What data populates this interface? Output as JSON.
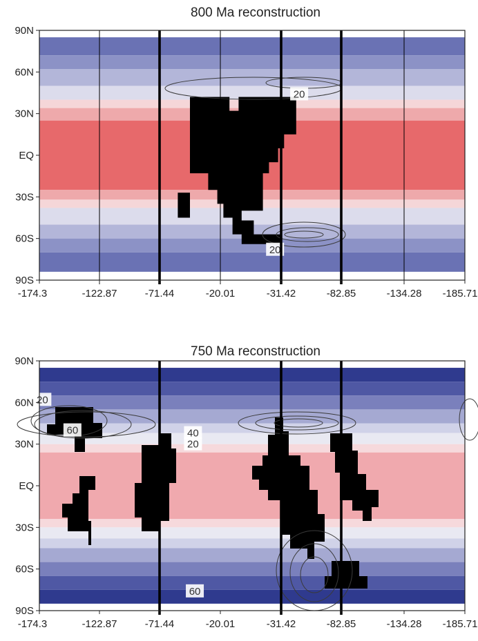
{
  "chart_data": [
    {
      "type": "heatmap",
      "title": "800 Ma reconstruction",
      "y_ticks": [
        "90N",
        "60N",
        "30N",
        "EQ",
        "30S",
        "60S",
        "90S"
      ],
      "x_ticks": [
        "-174.3",
        "-122.87",
        "-71.44",
        "-20.01",
        "-31.42",
        "-82.85",
        "-134.28",
        "-185.71"
      ],
      "ylim": [
        -90,
        90
      ],
      "x_tick_style": [
        "thin",
        "thin",
        "thick",
        "thin",
        "thick",
        "thick",
        "thin",
        "thin"
      ],
      "bands": [
        {
          "from": 90,
          "to": 85,
          "color": "#ffffff"
        },
        {
          "from": 85,
          "to": 72,
          "color": "#6a72b4"
        },
        {
          "from": 72,
          "to": 62,
          "color": "#8c92c6"
        },
        {
          "from": 62,
          "to": 50,
          "color": "#b3b6d9"
        },
        {
          "from": 50,
          "to": 40,
          "color": "#dcdcec"
        },
        {
          "from": 40,
          "to": 34,
          "color": "#f5d6d8"
        },
        {
          "from": 34,
          "to": 25,
          "color": "#eea9ab"
        },
        {
          "from": 25,
          "to": -25,
          "color": "#e7696b"
        },
        {
          "from": -25,
          "to": -32,
          "color": "#eea9ab"
        },
        {
          "from": -32,
          "to": -38,
          "color": "#f5d6d8"
        },
        {
          "from": -38,
          "to": -50,
          "color": "#dcdcec"
        },
        {
          "from": -50,
          "to": -60,
          "color": "#b3b6d9"
        },
        {
          "from": -60,
          "to": -70,
          "color": "#8c92c6"
        },
        {
          "from": -70,
          "to": -84,
          "color": "#6a72b4"
        },
        {
          "from": -84,
          "to": -90,
          "color": "#ffffff"
        }
      ],
      "land": [
        [
          0.5,
          -27
        ],
        [
          0.5,
          42
        ],
        [
          1.15,
          42
        ],
        [
          1.15,
          32
        ],
        [
          1.3,
          32
        ],
        [
          1.3,
          42
        ],
        [
          2.25,
          42
        ],
        [
          2.25,
          27
        ],
        [
          2.25,
          15
        ],
        [
          2.05,
          15
        ],
        [
          2.05,
          5
        ],
        [
          1.95,
          5
        ],
        [
          1.95,
          -5
        ],
        [
          1.8,
          -5
        ],
        [
          1.8,
          -13
        ],
        [
          1.7,
          -13
        ],
        [
          1.7,
          -40
        ],
        [
          1.35,
          -40
        ],
        [
          1.35,
          -47
        ],
        [
          1.55,
          -47
        ],
        [
          1.55,
          -57
        ],
        [
          2.0,
          -57
        ],
        [
          2.0,
          -64
        ],
        [
          1.35,
          -64
        ],
        [
          1.35,
          -57
        ],
        [
          1.2,
          -57
        ],
        [
          1.2,
          -45
        ],
        [
          1.05,
          -45
        ],
        [
          1.05,
          -35
        ],
        [
          0.95,
          -35
        ],
        [
          0.95,
          -25
        ],
        [
          0.8,
          -25
        ],
        [
          0.8,
          -13
        ],
        [
          0.5,
          -13
        ],
        [
          0.5,
          -27
        ]
      ],
      "land_extra": [
        [
          0.3,
          -27
        ],
        [
          0.3,
          -45
        ],
        [
          0.5,
          -45
        ],
        [
          0.5,
          -27
        ],
        [
          0.3,
          -27
        ]
      ],
      "contour_labels": [
        {
          "text": "20",
          "lon": 2.3,
          "lat": 44
        },
        {
          "text": "20",
          "lon": 1.9,
          "lat": -68
        }
      ]
    },
    {
      "type": "heatmap",
      "title": "750 Ma reconstruction",
      "y_ticks": [
        "90N",
        "60N",
        "30N",
        "EQ",
        "30S",
        "60S",
        "90S"
      ],
      "x_ticks": [
        "-174.3",
        "-122.87",
        "-71.44",
        "-20.01",
        "-31.42",
        "-82.85",
        "-134.28",
        "-185.71"
      ],
      "ylim": [
        -90,
        90
      ],
      "x_tick_style": [
        "none",
        "none",
        "thick",
        "none",
        "thick",
        "thick",
        "none",
        "none"
      ],
      "bands": [
        {
          "from": 90,
          "to": 85,
          "color": "#ffffff"
        },
        {
          "from": 85,
          "to": 75,
          "color": "#2f3a8e"
        },
        {
          "from": 75,
          "to": 65,
          "color": "#4f58a4"
        },
        {
          "from": 65,
          "to": 55,
          "color": "#7a80bc"
        },
        {
          "from": 55,
          "to": 45,
          "color": "#a5a9d2"
        },
        {
          "from": 45,
          "to": 38,
          "color": "#d0d2e8"
        },
        {
          "from": 38,
          "to": 30,
          "color": "#e9e9f2"
        },
        {
          "from": 30,
          "to": 24,
          "color": "#f6d9dc"
        },
        {
          "from": 24,
          "to": -24,
          "color": "#f0a9ae"
        },
        {
          "from": -24,
          "to": -30,
          "color": "#f6d9dc"
        },
        {
          "from": -30,
          "to": -38,
          "color": "#e9e9f2"
        },
        {
          "from": -38,
          "to": -45,
          "color": "#d0d2e8"
        },
        {
          "from": -45,
          "to": -55,
          "color": "#a5a9d2"
        },
        {
          "from": -55,
          "to": -65,
          "color": "#7a80bc"
        },
        {
          "from": -65,
          "to": -75,
          "color": "#4f58a4"
        },
        {
          "from": -75,
          "to": -85,
          "color": "#2f3a8e"
        },
        {
          "from": -85,
          "to": -90,
          "color": "#ffffff"
        }
      ],
      "contour_labels": [
        {
          "text": "20",
          "lon": -1.95,
          "lat": 62
        },
        {
          "text": "60",
          "lon": -1.45,
          "lat": 40
        },
        {
          "text": "40",
          "lon": 0.55,
          "lat": 38
        },
        {
          "text": "20",
          "lon": 0.55,
          "lat": 30
        },
        {
          "text": "60",
          "lon": 0.58,
          "lat": -76
        }
      ]
    }
  ]
}
